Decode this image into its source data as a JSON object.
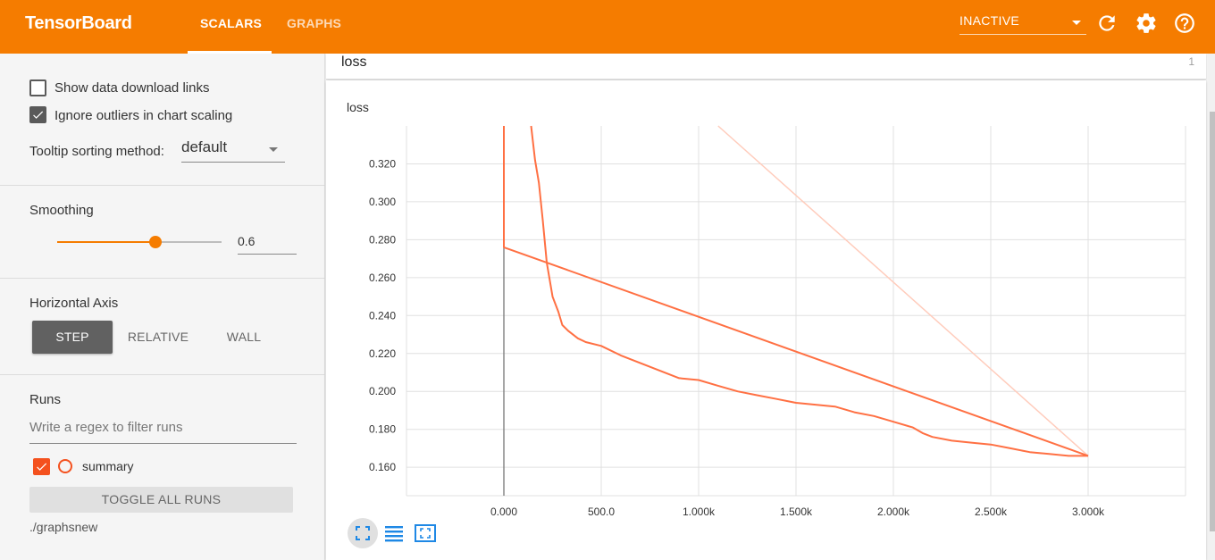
{
  "header": {
    "brand": "TensorBoard",
    "tabs": [
      {
        "label": "SCALARS",
        "active": true
      },
      {
        "label": "GRAPHS",
        "active": false
      }
    ],
    "status": "INACTIVE",
    "icons": [
      "refresh-icon",
      "settings-gear-icon",
      "help-icon"
    ],
    "accent_color": "#f57c00"
  },
  "sidebar": {
    "show_download_links": {
      "label": "Show data download links",
      "checked": false
    },
    "ignore_outliers": {
      "label": "Ignore outliers in chart scaling",
      "checked": true
    },
    "tooltip_sorting": {
      "label": "Tooltip sorting method:",
      "value": "default"
    },
    "smoothing": {
      "label": "Smoothing",
      "value": 0.6,
      "display": "0.6"
    },
    "horizontal_axis": {
      "label": "Horizontal Axis",
      "options": [
        "STEP",
        "RELATIVE",
        "WALL"
      ],
      "selected": "STEP"
    },
    "runs": {
      "label": "Runs",
      "filter_placeholder": "Write a regex to filter runs",
      "items": [
        {
          "name": "summary",
          "checked": true,
          "color": "#f4511e"
        }
      ],
      "toggle_label": "TOGGLE ALL RUNS",
      "logdir": "./graphsnew"
    }
  },
  "main": {
    "card": {
      "title": "loss",
      "count": "1"
    },
    "chart_title": "loss",
    "toolbar_icons": [
      "fit-domain-icon",
      "log-scale-icon",
      "toggle-y-axis-icon"
    ]
  },
  "chart_data": {
    "type": "line",
    "title": "loss",
    "xlim": [
      -500,
      3500
    ],
    "ylim": [
      0.145,
      0.34
    ],
    "x_ticks": [
      "0.000",
      "500.0",
      "1.000k",
      "1.500k",
      "2.000k",
      "2.500k",
      "3.000k"
    ],
    "y_ticks": [
      "0.320",
      "0.300",
      "0.280",
      "0.260",
      "0.240",
      "0.220",
      "0.200",
      "0.180",
      "0.160"
    ],
    "grid": true,
    "series": [
      {
        "name": "summary",
        "style": "smoothed",
        "color": "#ff7043",
        "x": [
          0,
          0,
          3000
        ],
        "y": [
          0.34,
          0.276,
          0.166
        ]
      },
      {
        "name": "summary",
        "style": "smoothed",
        "color": "#ff7043",
        "x": [
          140,
          160,
          180,
          200,
          220,
          250,
          280,
          300,
          330,
          380,
          420,
          500,
          600,
          700,
          800,
          900,
          1000,
          1100,
          1200,
          1300,
          1400,
          1500,
          1600,
          1700,
          1800,
          1900,
          2000,
          2100,
          2150,
          2200,
          2300,
          2400,
          2500,
          2600,
          2700,
          2800,
          2900,
          3000
        ],
        "y": [
          0.34,
          0.322,
          0.31,
          0.29,
          0.268,
          0.25,
          0.242,
          0.235,
          0.232,
          0.228,
          0.226,
          0.224,
          0.219,
          0.215,
          0.211,
          0.207,
          0.206,
          0.203,
          0.2,
          0.198,
          0.196,
          0.194,
          0.193,
          0.192,
          0.189,
          0.187,
          0.184,
          0.181,
          0.178,
          0.176,
          0.174,
          0.173,
          0.172,
          0.17,
          0.168,
          0.167,
          0.166,
          0.166
        ]
      },
      {
        "name": "summary",
        "style": "raw",
        "color": "#ffccbc",
        "x": [
          1100,
          3000
        ],
        "y": [
          0.34,
          0.166
        ]
      }
    ]
  }
}
